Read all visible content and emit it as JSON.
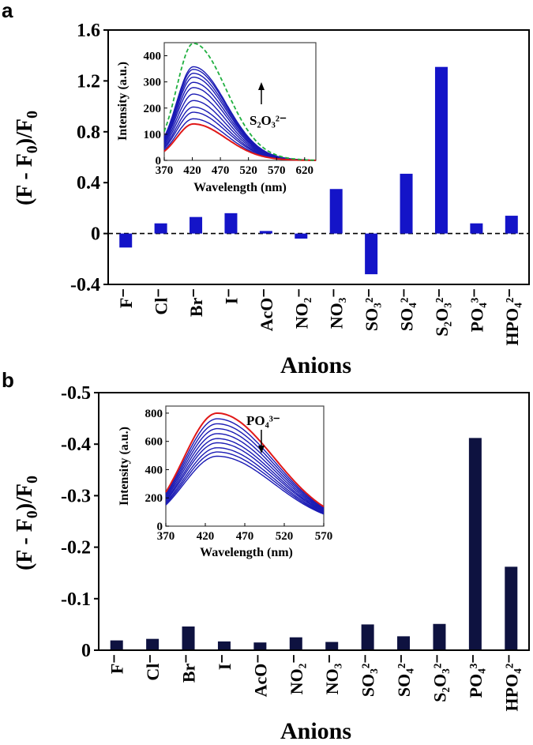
{
  "chart_data": [
    {
      "panel": "a",
      "type": "bar",
      "xlabel": "Anions",
      "ylabel": "(F - F0)/F0",
      "ylim": [
        -0.4,
        1.6
      ],
      "yticks": [
        "-0.4",
        "0",
        "0.4",
        "0.8",
        "1.2",
        "1.6"
      ],
      "reference_line": 0,
      "bar_color": "#1414c8",
      "categories": [
        "F⁻",
        "Cl⁻",
        "Br⁻",
        "I⁻",
        "AcO⁻",
        "NO₂⁻",
        "NO₃⁻",
        "SO₃²⁻",
        "SO₄²⁻",
        "S₂O₃²⁻",
        "PO₄³⁻",
        "HPO₄²⁻"
      ],
      "values": [
        -0.11,
        0.08,
        0.13,
        0.16,
        0.02,
        -0.04,
        0.35,
        -0.32,
        0.47,
        1.31,
        0.08,
        0.14
      ],
      "inset": {
        "xlabel": "Wavelength (nm)",
        "ylabel": "Intensity (a.u.)",
        "xlim": [
          370,
          640
        ],
        "ylim": [
          0,
          450
        ],
        "xticks": [
          "370",
          "420",
          "470",
          "520",
          "570",
          "620"
        ],
        "yticks": [
          "0",
          "100",
          "200",
          "300",
          "400"
        ],
        "annotation": "S₂O₃²⁻",
        "arrow": "up",
        "peak_nm": 422,
        "initial_peak": 140,
        "initial_color": "#e01818",
        "series_peaks": [
          160,
          185,
          205,
          230,
          255,
          280,
          300,
          320,
          335,
          350,
          360
        ],
        "series_color": "#1a1ab4",
        "final_peak": 450,
        "final_color": "#20b040"
      }
    },
    {
      "panel": "b",
      "type": "bar",
      "xlabel": "Anions",
      "ylabel": "(F - F0)/F0",
      "ylim": [
        0,
        -0.5
      ],
      "yticks": [
        "0",
        "-0.1",
        "-0.2",
        "-0.3",
        "-0.4",
        "-0.5"
      ],
      "bar_color": "#0e1240",
      "categories": [
        "F⁻",
        "Cl⁻",
        "Br⁻",
        "I⁻",
        "AcO⁻",
        "NO₂⁻",
        "NO₃⁻",
        "SO₃²⁻",
        "SO₄²⁻",
        "S₂O₃²⁻",
        "PO₄³⁻",
        "HPO₄²⁻"
      ],
      "values": [
        -0.019,
        -0.022,
        -0.046,
        -0.017,
        -0.015,
        -0.025,
        -0.016,
        -0.05,
        -0.027,
        -0.051,
        -0.412,
        -0.162
      ],
      "inset": {
        "xlabel": "Wavelength (nm)",
        "ylabel": "Intensity (a.u.)",
        "xlim": [
          370,
          570
        ],
        "ylim": [
          0,
          850
        ],
        "xticks": [
          "370",
          "420",
          "470",
          "520",
          "570"
        ],
        "yticks": [
          "0",
          "200",
          "400",
          "600",
          "800"
        ],
        "annotation": "PO₄³⁻",
        "arrow": "down",
        "peak_nm": 435,
        "initial_peak": 800,
        "initial_color": "#e01818",
        "series_peaks": [
          760,
          725,
          690,
          655,
          620,
          590,
          555,
          525,
          495
        ],
        "series_color": "#1a1ab4"
      }
    }
  ]
}
